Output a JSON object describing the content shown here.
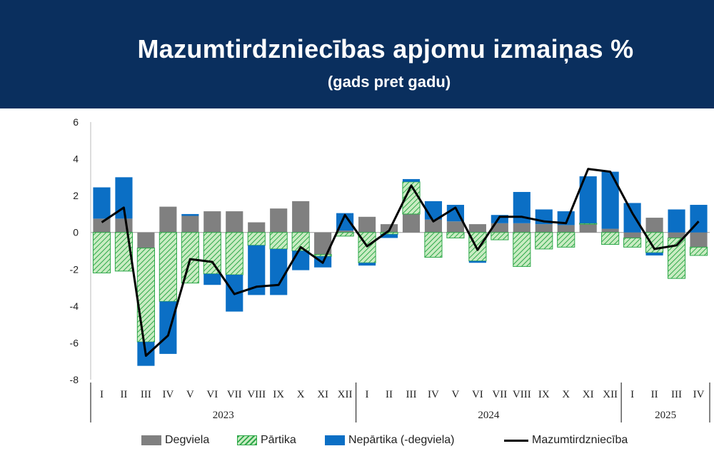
{
  "header": {
    "title": "Mazumtirdzniecības apjomu izmaiņas %",
    "subtitle": "(gads pret gadu)"
  },
  "legend": {
    "fuel": "Degviela",
    "food": "Pārtika",
    "nonfood": "Nepārtika (-degviela)",
    "retail": "Mazumtirdzniecība"
  },
  "colors": {
    "fuel": "#808080",
    "food_fill": "#b7e4b0",
    "food_stripe": "#2ea84a",
    "nonfood": "#0b6fc5",
    "line": "#000000",
    "banner": "#0a2f5e"
  },
  "chart_data": {
    "type": "bar",
    "stacked": true,
    "title": "Mazumtirdzniecības apjomu izmaiņas %",
    "subtitle": "(gads pret gadu)",
    "ylim": [
      -8,
      6
    ],
    "yticks": [
      "-8",
      "-6",
      "-4",
      "-2",
      "0",
      "2",
      "4",
      "6"
    ],
    "categories": [
      "I",
      "II",
      "III",
      "IV",
      "V",
      "VI",
      "VII",
      "VIII",
      "IX",
      "X",
      "XI",
      "XII",
      "I",
      "II",
      "III",
      "IV",
      "V",
      "VI",
      "VII",
      "VIII",
      "IX",
      "X",
      "XI",
      "XII",
      "I",
      "II",
      "III",
      "IV"
    ],
    "years": [
      {
        "label": "2023",
        "count": 12
      },
      {
        "label": "2024",
        "count": 12
      },
      {
        "label": "2025",
        "count": 4
      }
    ],
    "series": [
      {
        "name": "Degviela",
        "kind": "bar",
        "values": [
          0.75,
          0.75,
          -0.85,
          1.4,
          0.9,
          1.15,
          1.15,
          0.55,
          1.3,
          1.7,
          -1.2,
          0.1,
          0.85,
          0.45,
          1.0,
          0.7,
          0.6,
          0.45,
          0.5,
          0.5,
          0.45,
          0.4,
          0.45,
          0.2,
          -0.3,
          0.8,
          -0.3,
          -0.8
        ]
      },
      {
        "name": "Pārtika",
        "kind": "bar",
        "values": [
          -2.2,
          -2.1,
          -5.1,
          -3.75,
          -2.75,
          -2.25,
          -2.3,
          -0.7,
          -0.9,
          -1.0,
          -0.1,
          -0.2,
          -1.65,
          -0.1,
          1.75,
          -1.35,
          -0.3,
          -1.55,
          -0.4,
          -1.85,
          -0.9,
          -0.8,
          0.05,
          -0.65,
          -0.5,
          -1.1,
          -2.2,
          -0.45
        ]
      },
      {
        "name": "Nepārtika (-degviela)",
        "kind": "bar",
        "values": [
          1.7,
          2.25,
          -1.3,
          -2.85,
          0.1,
          -0.6,
          -2.0,
          -2.7,
          -2.5,
          -1.05,
          -0.6,
          0.95,
          -0.15,
          -0.2,
          0.15,
          1.0,
          0.9,
          -0.1,
          0.45,
          1.7,
          0.8,
          0.75,
          2.55,
          3.1,
          1.6,
          -0.15,
          1.25,
          1.5
        ]
      },
      {
        "name": "Mazumtirdzniecība",
        "kind": "line",
        "values": [
          0.55,
          1.35,
          -6.7,
          -5.6,
          -1.45,
          -1.6,
          -3.35,
          -2.95,
          -2.85,
          -0.8,
          -1.65,
          0.95,
          -0.75,
          0.1,
          2.55,
          0.6,
          1.35,
          -0.95,
          0.85,
          0.85,
          0.6,
          0.5,
          3.45,
          3.3,
          1.05,
          -0.9,
          -0.7,
          0.6
        ]
      }
    ]
  }
}
